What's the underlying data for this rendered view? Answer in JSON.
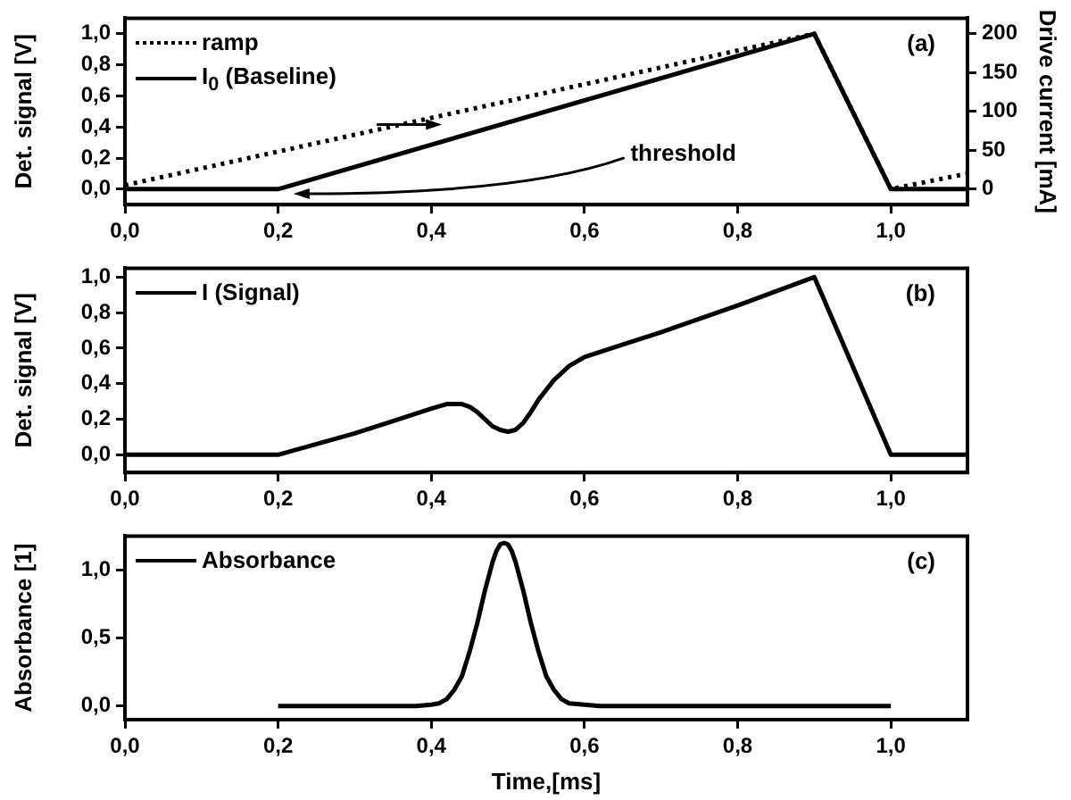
{
  "chart_data": [
    {
      "type": "line",
      "ylabel": "Det. signal [V]",
      "y2label": "Drive current [mA]",
      "annotations": [
        "(a)",
        {
          "text": "threshold",
          "x": 0.22,
          "y": -0.03
        }
      ],
      "xlim": [
        0,
        1.1
      ],
      "xticks": [
        {
          "value": 0,
          "label": "0,0"
        },
        {
          "value": 0.2,
          "label": "0,2"
        },
        {
          "value": 0.4,
          "label": "0,4"
        },
        {
          "value": 0.6,
          "label": "0,6"
        },
        {
          "value": 0.8,
          "label": "0,8"
        },
        {
          "value": 1.0,
          "label": "1,0"
        }
      ],
      "ylim": [
        -0.1,
        1.1
      ],
      "yticks": [
        {
          "value": 0,
          "label": "0,0"
        },
        {
          "value": 0.2,
          "label": "0,2"
        },
        {
          "value": 0.4,
          "label": "0,4"
        },
        {
          "value": 0.6,
          "label": "0,6"
        },
        {
          "value": 0.8,
          "label": "0,8"
        },
        {
          "value": 1.0,
          "label": "1,0"
        }
      ],
      "y2lim": [
        -20,
        220
      ],
      "y2ticks": [
        0,
        50,
        100,
        150,
        200
      ],
      "legend": "top left",
      "marker": "none",
      "series": [
        {
          "name": "ramp",
          "color": "#000000",
          "axis": "y2",
          "line_style": "dotted",
          "x": [
            0,
            0.9,
            1.0,
            1.1
          ],
          "values": [
            5,
            200,
            0,
            20
          ]
        },
        {
          "name": "I$_{0}$ (Baseline)",
          "color": "#000000",
          "line_style": "solid",
          "x": [
            0,
            0.2,
            0.9,
            1.0,
            1.1
          ],
          "values": [
            0,
            0,
            1.0,
            0,
            0
          ]
        }
      ]
    },
    {
      "type": "line",
      "ylabel": "Det. signal [V]",
      "annotations": [
        "(b)"
      ],
      "xlim": [
        0,
        1.1
      ],
      "xticks": [
        {
          "value": 0,
          "label": "0,0"
        },
        {
          "value": 0.2,
          "label": "0,2"
        },
        {
          "value": 0.4,
          "label": "0,4"
        },
        {
          "value": 0.6,
          "label": "0,6"
        },
        {
          "value": 0.8,
          "label": "0,8"
        },
        {
          "value": 1.0,
          "label": "1,0"
        }
      ],
      "ylim": [
        -0.1,
        1.05
      ],
      "yticks": [
        {
          "value": 0,
          "label": "0,0"
        },
        {
          "value": 0.2,
          "label": "0,2"
        },
        {
          "value": 0.4,
          "label": "0,4"
        },
        {
          "value": 0.6,
          "label": "0,6"
        },
        {
          "value": 0.8,
          "label": "0,8"
        },
        {
          "value": 1.0,
          "label": "1,0"
        }
      ],
      "legend": "top left",
      "marker": "none",
      "series": [
        {
          "name": "I (Signal)",
          "color": "#000000",
          "line_style": "solid",
          "x": [
            0,
            0.2,
            0.25,
            0.3,
            0.35,
            0.4,
            0.42,
            0.44,
            0.45,
            0.46,
            0.47,
            0.48,
            0.49,
            0.5,
            0.51,
            0.52,
            0.53,
            0.54,
            0.56,
            0.58,
            0.6,
            0.65,
            0.7,
            0.8,
            0.9,
            1.0,
            1.1
          ],
          "values": [
            0,
            0,
            0.06,
            0.12,
            0.19,
            0.26,
            0.285,
            0.285,
            0.27,
            0.24,
            0.2,
            0.16,
            0.14,
            0.13,
            0.14,
            0.18,
            0.24,
            0.31,
            0.42,
            0.5,
            0.55,
            0.62,
            0.69,
            0.84,
            1.0,
            0,
            0
          ]
        }
      ]
    },
    {
      "type": "line",
      "ylabel": "Absorbance [1]",
      "xlabel": "Time,[ms]",
      "annotations": [
        "(c)"
      ],
      "xlim": [
        0,
        1.1
      ],
      "xticks": [
        {
          "value": 0,
          "label": "0,0"
        },
        {
          "value": 0.2,
          "label": "0,2"
        },
        {
          "value": 0.4,
          "label": "0,4"
        },
        {
          "value": 0.6,
          "label": "0,6"
        },
        {
          "value": 0.8,
          "label": "0,8"
        },
        {
          "value": 1.0,
          "label": "1,0"
        }
      ],
      "ylim": [
        -0.1,
        1.25
      ],
      "yticks": [
        {
          "value": 0,
          "label": "0,0"
        },
        {
          "value": 0.5,
          "label": "0,5"
        },
        {
          "value": 1.0,
          "label": "1,0"
        }
      ],
      "legend": "top left",
      "marker": "none",
      "series": [
        {
          "name": "Absorbance",
          "color": "#000000",
          "line_style": "solid",
          "x": [
            0.2,
            0.38,
            0.4,
            0.41,
            0.42,
            0.43,
            0.44,
            0.45,
            0.46,
            0.47,
            0.48,
            0.485,
            0.49,
            0.495,
            0.5,
            0.505,
            0.51,
            0.52,
            0.53,
            0.54,
            0.55,
            0.56,
            0.57,
            0.58,
            0.6,
            0.62,
            1.0
          ],
          "values": [
            0,
            0,
            0.01,
            0.02,
            0.05,
            0.12,
            0.22,
            0.4,
            0.61,
            0.85,
            1.06,
            1.14,
            1.19,
            1.2,
            1.19,
            1.14,
            1.06,
            0.85,
            0.61,
            0.4,
            0.22,
            0.12,
            0.05,
            0.02,
            0.01,
            0,
            0
          ]
        }
      ]
    }
  ]
}
